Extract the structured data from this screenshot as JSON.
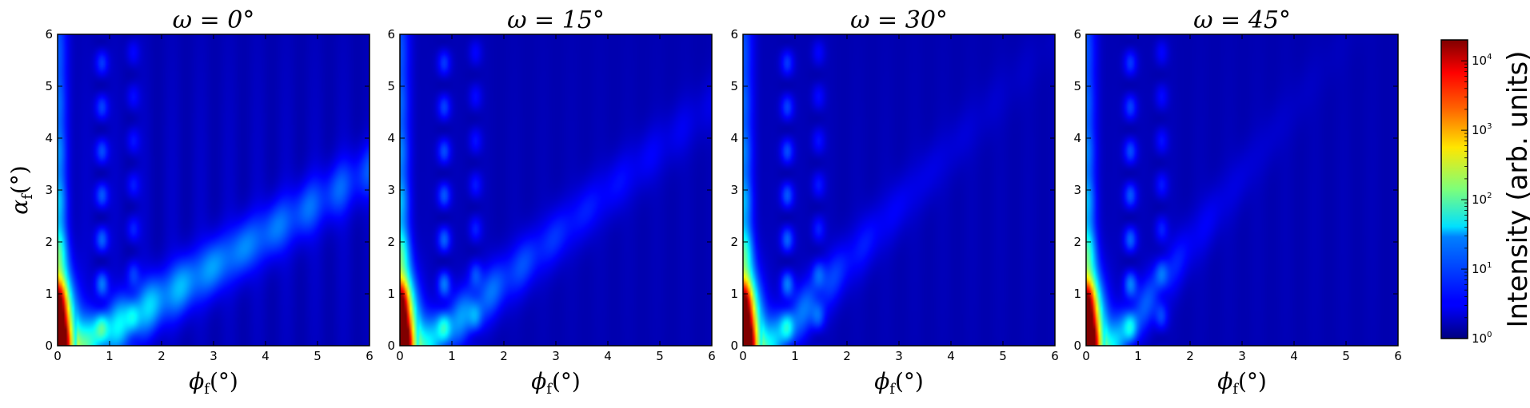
{
  "chart_data": {
    "type": "heatmap",
    "panels": [
      {
        "title": "ω = 0°",
        "omega_deg": 0,
        "xlabel": "ϕf(°)",
        "ylabel": "αf(°)"
      },
      {
        "title": "ω = 15°",
        "omega_deg": 15,
        "xlabel": "ϕf(°)",
        "ylabel": ""
      },
      {
        "title": "ω = 30°",
        "omega_deg": 30,
        "xlabel": "ϕf(°)",
        "ylabel": ""
      },
      {
        "title": "ω = 45°",
        "omega_deg": 45,
        "xlabel": "ϕf(°)",
        "ylabel": ""
      }
    ],
    "xlim": [
      0,
      6
    ],
    "ylim": [
      0,
      6
    ],
    "x_ticks": [
      "0",
      "1",
      "2",
      "3",
      "4",
      "5",
      "6"
    ],
    "y_ticks": [
      "0",
      "1",
      "2",
      "3",
      "4",
      "5",
      "6"
    ],
    "colorbar": {
      "label": "Intensity (arb. units)",
      "scale": "log",
      "range": [
        1,
        20000
      ],
      "ticks": [
        {
          "base": "10",
          "exp": "0",
          "value": 1
        },
        {
          "base": "10",
          "exp": "1",
          "value": 10
        },
        {
          "base": "10",
          "exp": "2",
          "value": 100
        },
        {
          "base": "10",
          "exp": "3",
          "value": 1000
        },
        {
          "base": "10",
          "exp": "4",
          "value": 10000
        }
      ],
      "colormap": "jet"
    }
  }
}
